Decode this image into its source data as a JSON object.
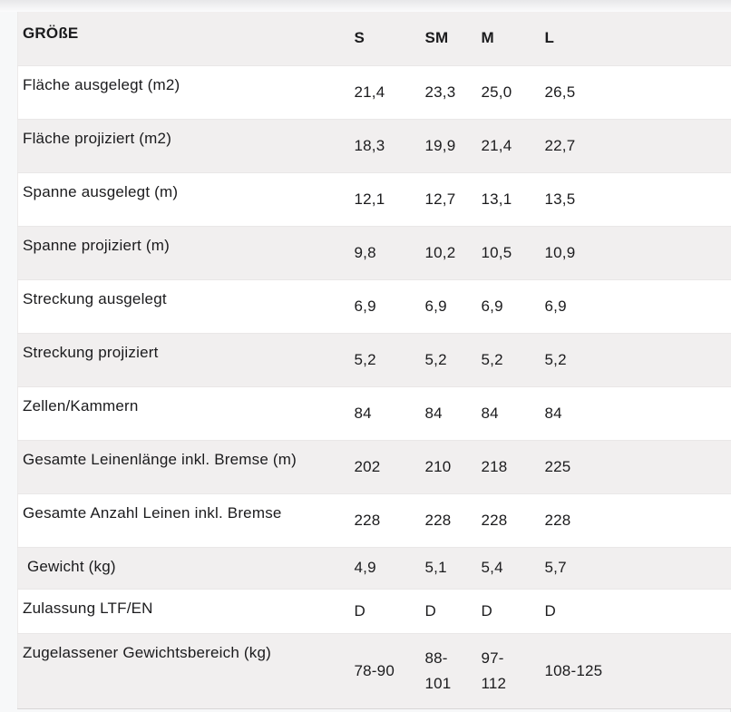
{
  "colors": {
    "stripe": "#f1efef",
    "text": "#1b1b1d",
    "page_background": "#f7f8f9",
    "row_border": "#e9e7e7"
  },
  "table": {
    "header": {
      "label": "GRÖßE",
      "columns": [
        "S",
        "SM",
        "M",
        "L"
      ]
    },
    "rows": [
      {
        "label": "Fläche ausgelegt (m2)",
        "values": [
          "21,4",
          "23,3",
          "25,0",
          "26,5"
        ]
      },
      {
        "label": "Fläche projiziert (m2)",
        "values": [
          "18,3",
          "19,9",
          "21,4",
          "22,7"
        ]
      },
      {
        "label": "Spanne ausgelegt (m)",
        "values": [
          "12,1",
          "12,7",
          "13,1",
          "13,5"
        ]
      },
      {
        "label": "Spanne projiziert (m)",
        "values": [
          "9,8",
          "10,2",
          "10,5",
          "10,9"
        ]
      },
      {
        "label": "Streckung ausgelegt",
        "values": [
          "6,9",
          "6,9",
          "6,9",
          "6,9"
        ]
      },
      {
        "label": "Streckung projiziert",
        "values": [
          "5,2",
          "5,2",
          "5,2",
          "5,2"
        ]
      },
      {
        "label": "Zellen/Kammern",
        "values": [
          "84",
          "84",
          "84",
          "84"
        ]
      },
      {
        "label": "Gesamte Leinenlänge inkl. Bremse (m)",
        "values": [
          "202",
          "210",
          "218",
          "225"
        ]
      },
      {
        "label": "Gesamte Anzahl Leinen inkl. Bremse",
        "values": [
          "228",
          "228",
          "228",
          "228"
        ]
      },
      {
        "label": " Gewicht (kg)",
        "values": [
          "4,9",
          "5,1",
          "5,4",
          "5,7"
        ]
      },
      {
        "label": "Zulassung LTF/EN",
        "values": [
          "D",
          "D",
          "D",
          "D"
        ]
      },
      {
        "label": "Zugelassener Gewichtsbereich (kg)",
        "values": [
          "78-90",
          "88-\n101",
          "97-\n112",
          "108-125"
        ]
      }
    ]
  }
}
